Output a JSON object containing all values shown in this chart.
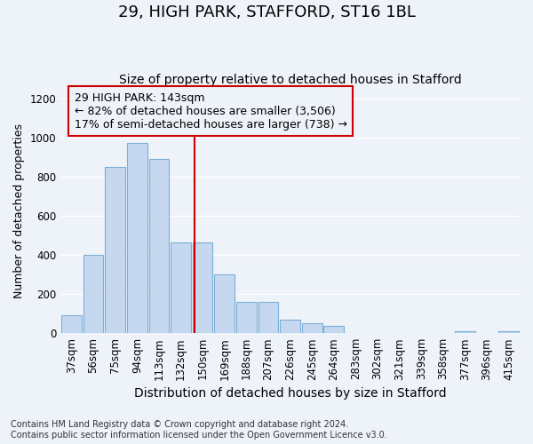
{
  "title1": "29, HIGH PARK, STAFFORD, ST16 1BL",
  "title2": "Size of property relative to detached houses in Stafford",
  "xlabel": "Distribution of detached houses by size in Stafford",
  "ylabel": "Number of detached properties",
  "categories": [
    "37sqm",
    "56sqm",
    "75sqm",
    "94sqm",
    "113sqm",
    "132sqm",
    "150sqm",
    "169sqm",
    "188sqm",
    "207sqm",
    "226sqm",
    "245sqm",
    "264sqm",
    "283sqm",
    "302sqm",
    "321sqm",
    "339sqm",
    "358sqm",
    "377sqm",
    "396sqm",
    "415sqm"
  ],
  "values": [
    90,
    398,
    848,
    970,
    888,
    463,
    463,
    298,
    160,
    160,
    70,
    50,
    35,
    0,
    0,
    0,
    0,
    0,
    12,
    0,
    12
  ],
  "bar_color": "#c5d8f0",
  "bar_edgecolor": "#7bafd4",
  "annotation_line1": "29 HIGH PARK: 143sqm",
  "annotation_line2": "← 82% of detached houses are smaller (3,506)",
  "annotation_line3": "17% of semi-detached houses are larger (738) →",
  "marker_color": "#cc0000",
  "box_edgecolor": "#cc0000",
  "footnote1": "Contains HM Land Registry data © Crown copyright and database right 2024.",
  "footnote2": "Contains public sector information licensed under the Open Government Licence v3.0.",
  "ylim": [
    0,
    1250
  ],
  "yticks": [
    0,
    200,
    400,
    600,
    800,
    1000,
    1200
  ],
  "background_color": "#eef2f9",
  "grid_color": "#ffffff",
  "title1_fontsize": 13,
  "title2_fontsize": 10,
  "xlabel_fontsize": 10,
  "ylabel_fontsize": 9,
  "tick_fontsize": 8.5,
  "annotation_fontsize": 9,
  "footnote_fontsize": 7
}
